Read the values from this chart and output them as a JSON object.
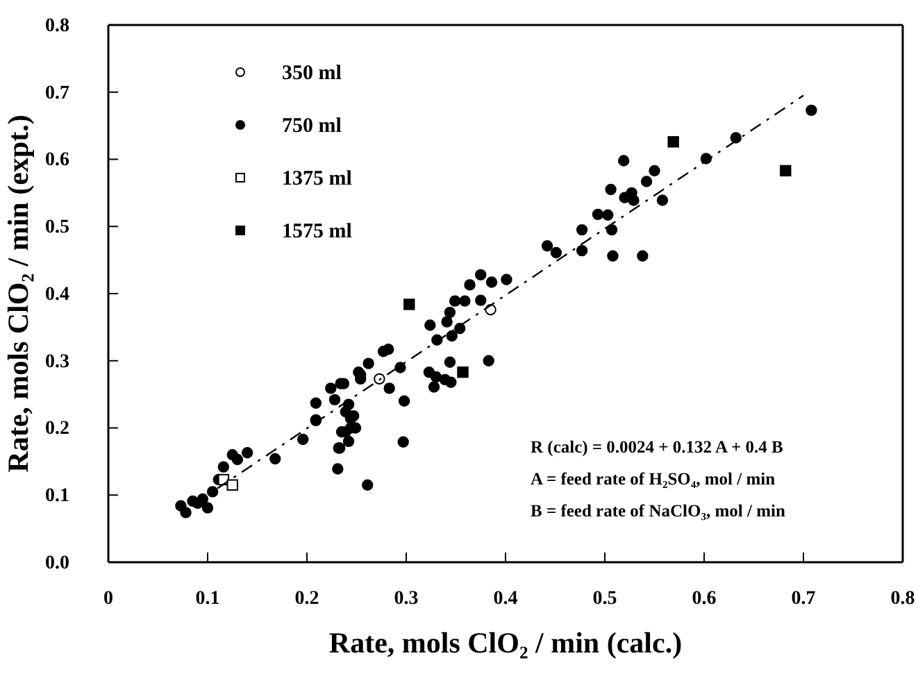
{
  "chart_data": {
    "type": "scatter",
    "xlabel": "Rate, mols ClO₂ / min (calc.)",
    "ylabel": "Rate, mols ClO₂ / min (expt.)",
    "xlim": [
      0,
      0.8
    ],
    "ylim": [
      0,
      0.8
    ],
    "xticks": [
      {
        "value": 0,
        "label": "0"
      },
      0.1,
      0.2,
      0.3,
      0.4,
      0.5,
      0.6,
      0.7,
      0.8
    ],
    "yticks": [
      {
        "value": 0,
        "label": "0.0"
      },
      0.1,
      0.2,
      0.3,
      0.4,
      0.5,
      0.6,
      0.7,
      0.8
    ],
    "grid": false,
    "legend": "top left",
    "annotations": [
      "R (calc) = 0.0024 + 0.132 A  + 0.4 B",
      "A = feed rate of H₂SO₄, mol / min",
      "B = feed rate of NaClO₃, mol / min"
    ],
    "series": [
      {
        "name": "350 ml",
        "color": "#ffffff",
        "marker": "circle",
        "x": [
          0.273,
          0.385
        ],
        "values": [
          0.273,
          0.376
        ]
      },
      {
        "name": "750 ml",
        "color": "#000000",
        "marker": "circle",
        "x": [
          0.073,
          0.078,
          0.085,
          0.09,
          0.095,
          0.1,
          0.105,
          0.111,
          0.116,
          0.125,
          0.13,
          0.14,
          0.168,
          0.196,
          0.209,
          0.209,
          0.231,
          0.233,
          0.261,
          0.224,
          0.234,
          0.242,
          0.244,
          0.239,
          0.249,
          0.254,
          0.442,
          0.451,
          0.375,
          0.386,
          0.401,
          0.364,
          0.359,
          0.349,
          0.344,
          0.375,
          0.341,
          0.324,
          0.354,
          0.346,
          0.331,
          0.277,
          0.282,
          0.294,
          0.262,
          0.252,
          0.254,
          0.237,
          0.283,
          0.323,
          0.33,
          0.344,
          0.339,
          0.328,
          0.345,
          0.383,
          0.298,
          0.228,
          0.239,
          0.247,
          0.244,
          0.235,
          0.209,
          0.242,
          0.232,
          0.297,
          0.708,
          0.632,
          0.602,
          0.55,
          0.542,
          0.506,
          0.527,
          0.52,
          0.529,
          0.558,
          0.493,
          0.503,
          0.477,
          0.507,
          0.477,
          0.508,
          0.538,
          0.519
        ],
        "values": [
          0.084,
          0.074,
          0.091,
          0.088,
          0.094,
          0.081,
          0.105,
          0.123,
          0.142,
          0.16,
          0.153,
          0.163,
          0.154,
          0.183,
          0.211,
          0.237,
          0.139,
          0.17,
          0.115,
          0.259,
          0.266,
          0.235,
          0.214,
          0.194,
          0.2,
          0.279,
          0.471,
          0.461,
          0.428,
          0.417,
          0.421,
          0.413,
          0.389,
          0.389,
          0.372,
          0.39,
          0.358,
          0.353,
          0.348,
          0.337,
          0.331,
          0.314,
          0.317,
          0.29,
          0.296,
          0.283,
          0.273,
          0.266,
          0.259,
          0.283,
          0.276,
          0.298,
          0.272,
          0.261,
          0.268,
          0.3,
          0.24,
          0.242,
          0.224,
          0.218,
          0.2,
          0.194,
          0.212,
          0.18,
          0.17,
          0.179,
          0.673,
          0.632,
          0.601,
          0.583,
          0.567,
          0.555,
          0.55,
          0.543,
          0.539,
          0.539,
          0.518,
          0.517,
          0.495,
          0.495,
          0.464,
          0.456,
          0.456,
          0.598
        ]
      },
      {
        "name": "1375 ml",
        "color": "#ffffff",
        "marker": "square",
        "x": [
          0.116,
          0.125
        ],
        "values": [
          0.123,
          0.115
        ]
      },
      {
        "name": "1575 ml",
        "color": "#000000",
        "marker": "square",
        "x": [
          0.303,
          0.357,
          0.569,
          0.682
        ],
        "values": [
          0.384,
          0.283,
          0.626,
          0.583
        ]
      },
      {
        "type": "line",
        "color": "#000000",
        "line_style": "dashed",
        "marker": "none",
        "x": [
          0.11,
          0.7
        ],
        "values": [
          0.11,
          0.695
        ]
      }
    ]
  }
}
